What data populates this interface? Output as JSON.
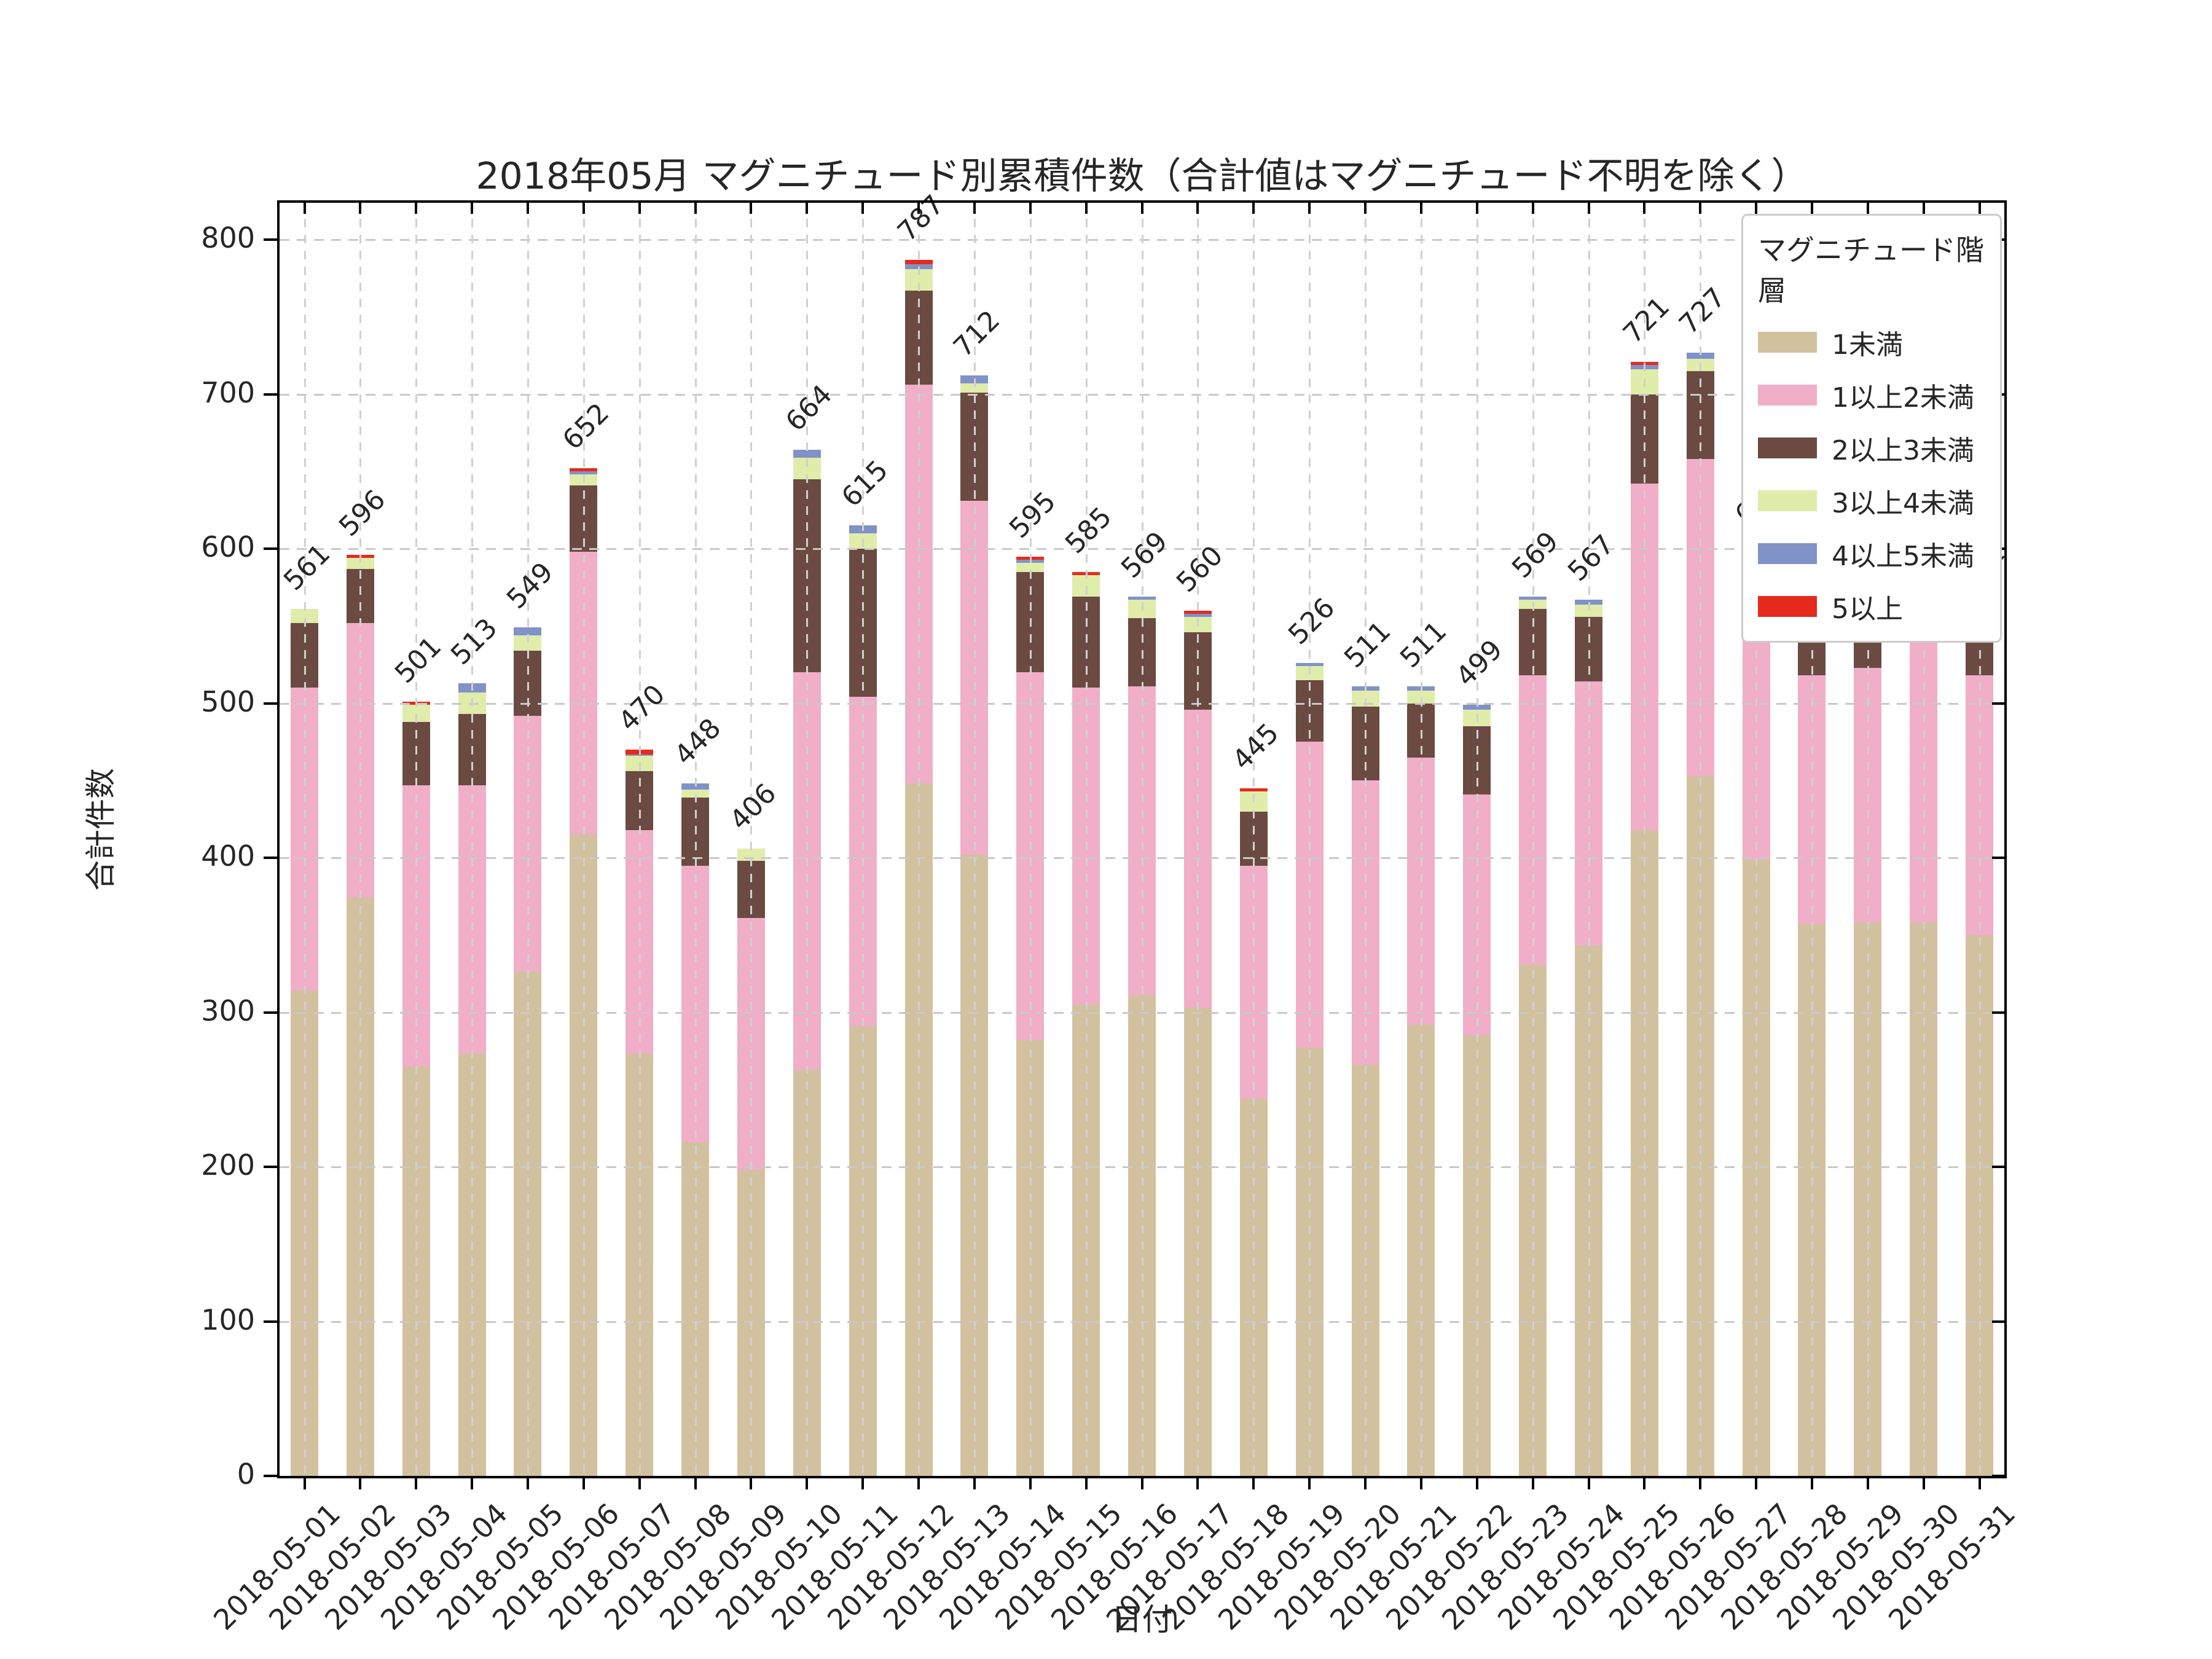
{
  "title": "2018年05月 マグニチュード別累積件数（合計値はマグニチュード不明を除く）",
  "xlabel": "日付",
  "ylabel": "合計件数",
  "legend": {
    "title": "マグニチュード階層"
  },
  "colors": {
    "background": "#ffffff",
    "grid": "#c9c9c9",
    "axis": "#000000",
    "text": "#262626"
  },
  "chart_data": {
    "type": "bar",
    "stacked": true,
    "grid": true,
    "legend_position": "upper right",
    "ylim": [
      0,
      800
    ],
    "yticks": [
      0,
      100,
      200,
      300,
      400,
      500,
      600,
      700,
      800
    ],
    "categories": [
      "2018-05-01",
      "2018-05-02",
      "2018-05-03",
      "2018-05-04",
      "2018-05-05",
      "2018-05-06",
      "2018-05-07",
      "2018-05-08",
      "2018-05-09",
      "2018-05-10",
      "2018-05-11",
      "2018-05-12",
      "2018-05-13",
      "2018-05-14",
      "2018-05-15",
      "2018-05-16",
      "2018-05-17",
      "2018-05-18",
      "2018-05-19",
      "2018-05-20",
      "2018-05-21",
      "2018-05-22",
      "2018-05-23",
      "2018-05-24",
      "2018-05-25",
      "2018-05-26",
      "2018-05-27",
      "2018-05-28",
      "2018-05-29",
      "2018-05-30",
      "2018-05-31"
    ],
    "series": [
      {
        "name": "1未満",
        "color": "#d2c19e",
        "values": [
          314,
          374,
          265,
          273,
          326,
          415,
          273,
          216,
          198,
          263,
          291,
          448,
          402,
          282,
          305,
          311,
          303,
          244,
          277,
          266,
          292,
          285,
          331,
          343,
          418,
          453,
          399,
          357,
          358,
          358,
          350
        ]
      },
      {
        "name": "1以上2未満",
        "color": "#f0aec8",
        "values": [
          196,
          178,
          182,
          174,
          166,
          183,
          145,
          179,
          163,
          257,
          213,
          258,
          229,
          238,
          205,
          200,
          193,
          151,
          198,
          184,
          173,
          156,
          187,
          171,
          224,
          205,
          162,
          161,
          165,
          182,
          168
        ]
      },
      {
        "name": "2以上3未満",
        "color": "#6a4a41",
        "values": [
          42,
          35,
          41,
          46,
          42,
          43,
          38,
          44,
          37,
          125,
          96,
          61,
          70,
          65,
          59,
          44,
          50,
          35,
          40,
          48,
          35,
          44,
          43,
          42,
          58,
          57,
          33,
          49,
          39,
          32,
          31
        ]
      },
      {
        "name": "3以上4未満",
        "color": "#e0ecaa",
        "values": [
          9,
          7,
          11,
          14,
          10,
          7,
          10,
          5,
          8,
          14,
          10,
          14,
          6,
          6,
          14,
          12,
          10,
          13,
          9,
          10,
          8,
          11,
          6,
          8,
          16,
          8,
          10,
          8,
          11,
          11,
          8
        ]
      },
      {
        "name": "4以上5未満",
        "color": "#8092c8",
        "values": [
          0,
          0,
          0,
          6,
          5,
          2,
          1,
          4,
          0,
          5,
          5,
          3,
          5,
          2,
          0,
          2,
          2,
          0,
          2,
          3,
          3,
          3,
          2,
          3,
          3,
          4,
          0,
          0,
          3,
          0,
          4
        ]
      },
      {
        "name": "5以上",
        "color": "#e62a1d",
        "values": [
          0,
          2,
          2,
          0,
          0,
          2,
          3,
          0,
          0,
          0,
          0,
          3,
          0,
          2,
          2,
          0,
          2,
          2,
          0,
          0,
          0,
          0,
          0,
          0,
          2,
          0,
          0,
          0,
          0,
          0,
          0
        ]
      }
    ],
    "totals": [
      561,
      596,
      501,
      513,
      549,
      652,
      470,
      448,
      406,
      664,
      615,
      787,
      712,
      595,
      585,
      569,
      560,
      445,
      526,
      511,
      511,
      499,
      569,
      567,
      721,
      727,
      604,
      575,
      576,
      583,
      561
    ]
  }
}
